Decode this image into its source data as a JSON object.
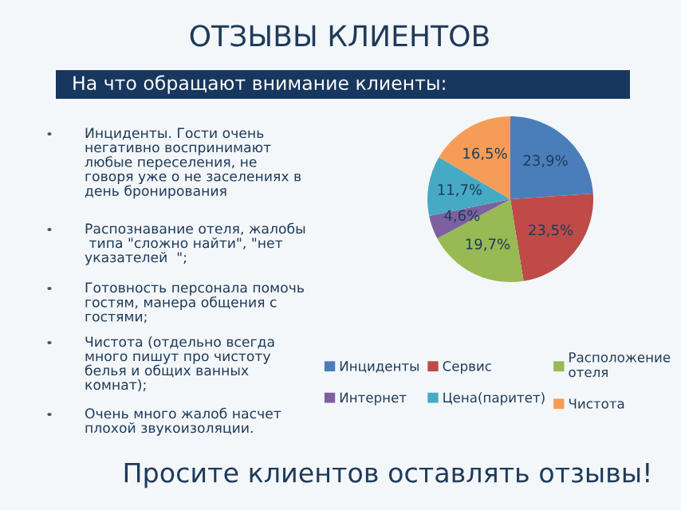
{
  "chart_data": {
    "type": "pie",
    "title": "ОТЗЫВЫ КЛИЕНТОВ",
    "subtitle": "На что обращают внимание клиенты:",
    "categories": [
      "Инциденты",
      "Сервис",
      "Расположение отеля",
      "Интернет",
      "Цена(паритет)",
      "Чистота"
    ],
    "values": [
      23.9,
      23.5,
      19.7,
      4.6,
      11.7,
      16.5
    ],
    "value_labels": [
      "23,9%",
      "23,5%",
      "19,7%",
      "4,6%",
      "11,7%",
      "16,5%"
    ],
    "colors": [
      "#4a7ebb",
      "#be4b48",
      "#98b954",
      "#7d60a0",
      "#46aac5",
      "#f59d56"
    ],
    "legend": "bottom",
    "annotations": [
      "Инциденты. Гости очень негативно воспринимают любые переселения, не говоря уже о не заселениях в день бронирования",
      "Распознавание отеля, жалобы  типа \"сложно найти\", \"нет указателей  \";",
      "Готовность персонала помочь гостям, манера общения с гостями;",
      "Чистота (отдельно всегда много пишут про чистоту белья и общих ванных комнат);",
      "Очень много жалоб насчет плохой звукоизоляции.",
      "Просите клиентов оставлять отзывы!"
    ]
  }
}
